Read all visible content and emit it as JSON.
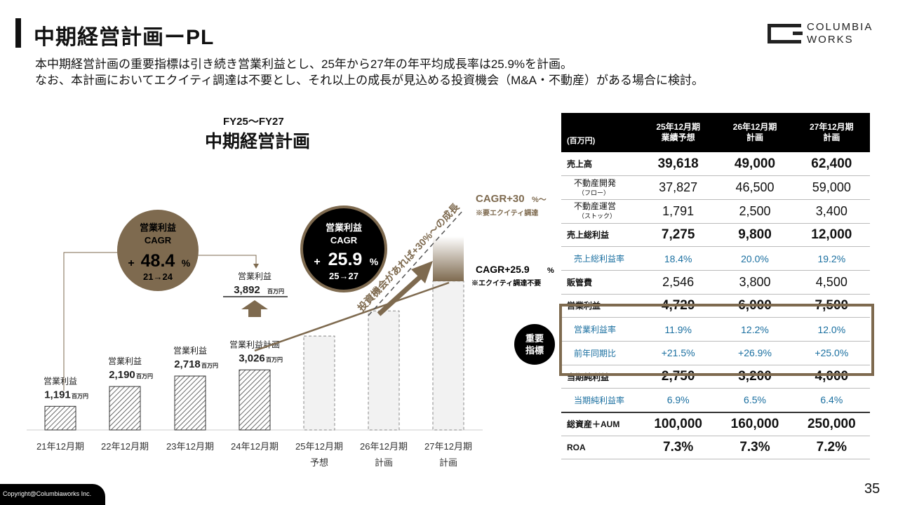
{
  "title": "中期経営計画ーPL",
  "subtitle": [
    "本中期経営計画の重要指標は引き続き営業利益とし、25年から27年の年平均成長率は25.9%を計画。",
    "なお、本計画においてエクイティ調達は不要とし、それ以上の成長が見込める投資機会（M&A・不動産）がある場合に検討。"
  ],
  "logo": {
    "line1": "COLUMBIA",
    "line2": "WORKS"
  },
  "chart_heading": {
    "line1": "FY25～FY27",
    "line2": "中期経営計画"
  },
  "chart_data": {
    "type": "bar",
    "categories": [
      "21年12月期",
      "22年12月期",
      "23年12月期",
      "24年12月期",
      "25年12月期 予想",
      "26年12月期 計画",
      "27年12月期 計画"
    ],
    "series": [
      {
        "values": [
          1191,
          2190,
          2718,
          3026,
          4729,
          6000,
          7500
        ]
      }
    ],
    "value_labels": [
      {
        "name": "営業利益",
        "value": "1,191",
        "unit": "百万円"
      },
      {
        "name": "営業利益",
        "value": "2,190",
        "unit": "百万円"
      },
      {
        "name": "営業利益",
        "value": "2,718",
        "unit": "百万円"
      },
      {
        "name": "営業利益計画",
        "value": "3,026",
        "unit": "百万円"
      }
    ],
    "actual_2024": {
      "name": "営業利益",
      "value": "3,892",
      "unit": "百万円"
    },
    "x_labels": [
      [
        "21年12月期",
        ""
      ],
      [
        "22年12月期",
        ""
      ],
      [
        "23年12月期",
        ""
      ],
      [
        "24年12月期",
        ""
      ],
      [
        "25年12月期",
        "予想"
      ],
      [
        "26年12月期",
        "計画"
      ],
      [
        "27年12月期",
        "計画"
      ]
    ],
    "circle1": {
      "l1": "営業利益",
      "l2": "CAGR",
      "plus": "+",
      "val": "48.4",
      "pct": "%",
      "range": "21→24"
    },
    "circle2": {
      "l1": "営業利益",
      "l2": "CAGR",
      "plus": "+",
      "val": "25.9",
      "pct": "%",
      "range": "25→27"
    },
    "cagr_high": {
      "main": "CAGR+30",
      "suffix": "%～",
      "note": "※要エクイティ調達"
    },
    "cagr_base": {
      "main": "CAGR+25.9",
      "suffix": "%",
      "note": "※エクイティ調達不要"
    },
    "diag_text": "投資機会があれば+30%～の成長",
    "colors": {
      "brown": "#7e6a4f",
      "bar_hatch": "#333",
      "plan_fill": "#f2f2f2"
    }
  },
  "table": {
    "corner": "(百万円)",
    "headers": [
      [
        "25年12月期",
        "業績予想"
      ],
      [
        "26年12月期",
        "計画"
      ],
      [
        "27年12月期",
        "計画"
      ]
    ],
    "rows": [
      {
        "label": "売上高",
        "values": [
          "39,618",
          "49,000",
          "62,400"
        ]
      },
      {
        "label": "不動産開発",
        "sub": "（フロー）",
        "values": [
          "37,827",
          "46,500",
          "59,000"
        ]
      },
      {
        "label": "不動産運営",
        "sub": "（ストック）",
        "values": [
          "1,791",
          "2,500",
          "3,400"
        ]
      },
      {
        "label": "売上総利益",
        "values": [
          "7,275",
          "9,800",
          "12,000"
        ]
      },
      {
        "label": "売上総利益率",
        "values": [
          "18.4%",
          "20.0%",
          "19.2%"
        ]
      },
      {
        "label": "販管費",
        "values": [
          "2,546",
          "3,800",
          "4,500"
        ]
      },
      {
        "label": "営業利益",
        "values": [
          "4,729",
          "6,000",
          "7,500"
        ]
      },
      {
        "label": "営業利益率",
        "values": [
          "11.9%",
          "12.2%",
          "12.0%"
        ]
      },
      {
        "label": "前年同期比",
        "values": [
          "+21.5%",
          "+26.9%",
          "+25.0%"
        ]
      },
      {
        "label": "当期純利益",
        "values": [
          "2,750",
          "3,200",
          "4,000"
        ]
      },
      {
        "label": "当期純利益率",
        "values": [
          "6.9%",
          "6.5%",
          "6.4%"
        ]
      },
      {
        "label": "総資産＋AUM",
        "values": [
          "100,000",
          "160,000",
          "250,000"
        ]
      },
      {
        "label": "ROA",
        "values": [
          "7.3%",
          "7.3%",
          "7.2%"
        ]
      }
    ]
  },
  "key_badge": [
    "重要",
    "指標"
  ],
  "copyright": "Copyright@Columbiaworks Inc.",
  "page_number": "35"
}
